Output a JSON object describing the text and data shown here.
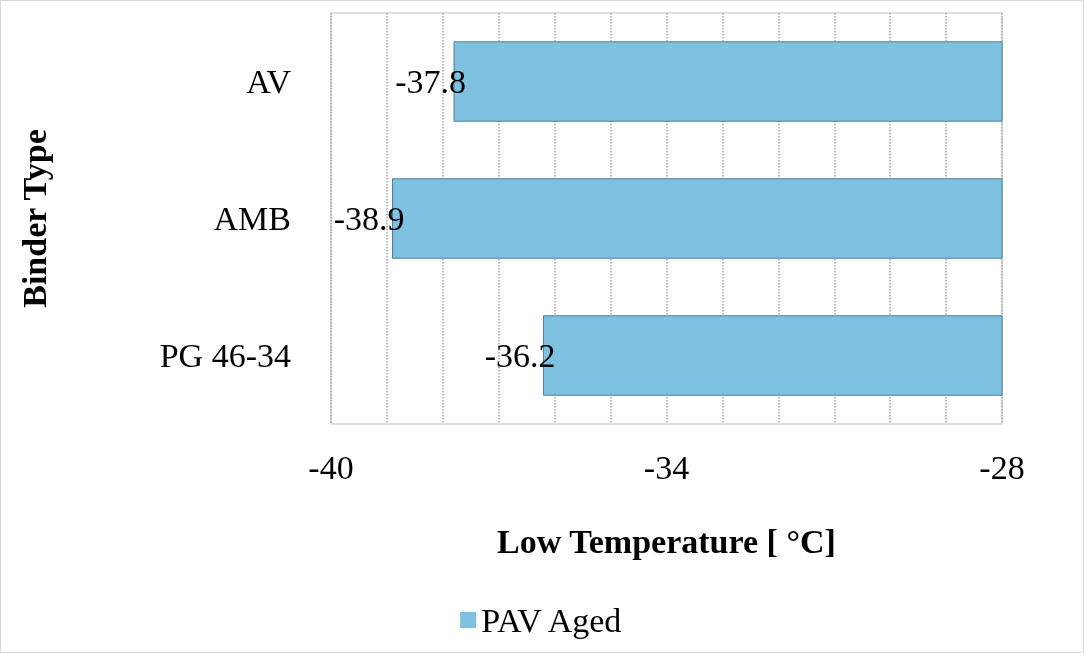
{
  "chart_data": {
    "type": "bar",
    "orientation": "horizontal",
    "xlabel": "Low Temperature [ °C]",
    "ylabel": "Binder Type",
    "categories": [
      "AV",
      "AMB",
      "PG 46-34"
    ],
    "series": [
      {
        "name": "PAV Aged",
        "color": "#7fc1e0",
        "values": [
          -37.8,
          -38.9,
          -36.2
        ]
      }
    ],
    "xlim": [
      -40,
      -28
    ],
    "xticks": [
      -40,
      {
        "value": -39,
        "label": null
      },
      {
        "value": -38,
        "label": null
      },
      {
        "value": -37,
        "label": null
      },
      {
        "value": -36,
        "label": null
      },
      {
        "value": -35,
        "label": null
      },
      -34,
      {
        "value": -33,
        "label": null
      },
      {
        "value": -32,
        "label": null
      },
      {
        "value": -31,
        "label": null
      },
      {
        "value": -30,
        "label": null
      },
      {
        "value": -29,
        "label": null
      },
      -28
    ],
    "grid": "x",
    "legend": "bottom",
    "data_labels": true
  }
}
